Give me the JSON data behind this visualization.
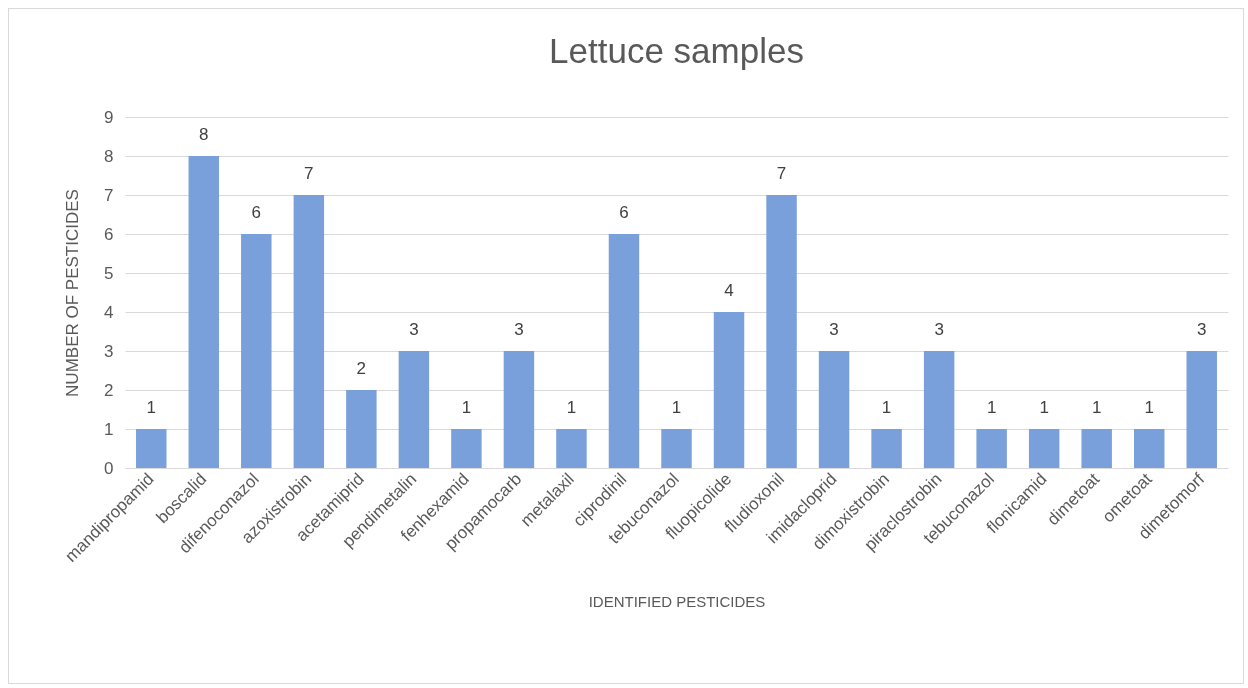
{
  "chart_data": {
    "type": "bar",
    "title": "Lettuce samples",
    "xlabel": "IDENTIFIED PESTICIDES",
    "ylabel": "NUMBER OF PESTICIDES",
    "categories": [
      "mandipropamid",
      "boscalid",
      "difenoconazol",
      "azoxistrobin",
      "acetamiprid",
      "pendimetalin",
      "fenhexamid",
      "propamocarb",
      "metalaxil",
      "ciprodinil",
      "tebuconazol",
      "fluopicolide",
      "fludioxonil",
      "imidacloprid",
      "dimoxistrobin",
      "piraclostrobin",
      "tebuconazol",
      "flonicamid",
      "dimetoat",
      "ometoat",
      "dimetomorf"
    ],
    "values": [
      1,
      8,
      6,
      7,
      2,
      3,
      1,
      3,
      1,
      6,
      1,
      4,
      7,
      3,
      1,
      3,
      1,
      1,
      1,
      1,
      3
    ],
    "color": "#7aa0db",
    "ylim": [
      0,
      9
    ],
    "yticks": [
      0,
      1,
      2,
      3,
      4,
      5,
      6,
      7,
      8,
      9
    ],
    "grid": "y",
    "data_labels": true
  }
}
